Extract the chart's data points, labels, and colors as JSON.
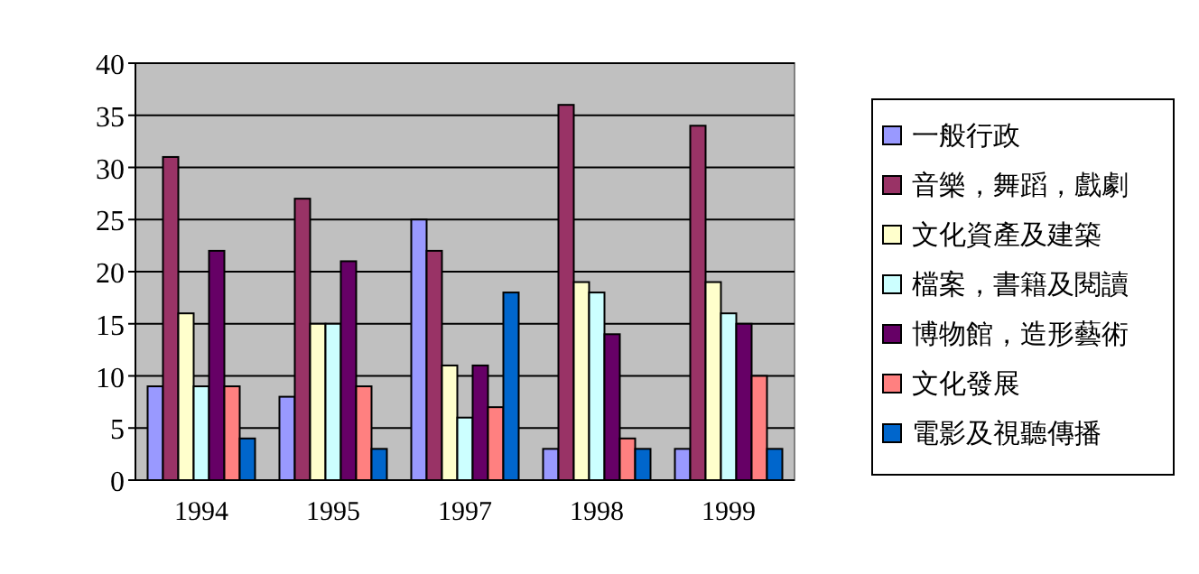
{
  "chart_data": {
    "type": "bar",
    "categories": [
      "1994",
      "1995",
      "1997",
      "1998",
      "1999"
    ],
    "series": [
      {
        "name": "一般行政",
        "color": "#9999ff",
        "values": [
          9,
          8,
          25,
          3,
          3
        ]
      },
      {
        "name": "音樂，舞蹈，戲劇",
        "color": "#993366",
        "values": [
          31,
          27,
          22,
          36,
          34
        ]
      },
      {
        "name": "文化資產及建築",
        "color": "#ffffcc",
        "values": [
          16,
          15,
          11,
          19,
          19
        ]
      },
      {
        "name": "檔案，書籍及閱讀",
        "color": "#ccffff",
        "values": [
          9,
          15,
          6,
          18,
          16
        ]
      },
      {
        "name": "博物館，造形藝術",
        "color": "#660066",
        "values": [
          22,
          21,
          11,
          14,
          15
        ]
      },
      {
        "name": "文化發展",
        "color": "#ff8080",
        "values": [
          9,
          9,
          7,
          4,
          10
        ]
      },
      {
        "name": "電影及視聽傳播",
        "color": "#0066cc",
        "values": [
          4,
          3,
          18,
          3,
          3
        ]
      }
    ],
    "ylim": [
      0,
      40
    ],
    "yticks": [
      0,
      5,
      10,
      15,
      20,
      25,
      30,
      35,
      40
    ],
    "grid": "y",
    "legend": "right"
  }
}
